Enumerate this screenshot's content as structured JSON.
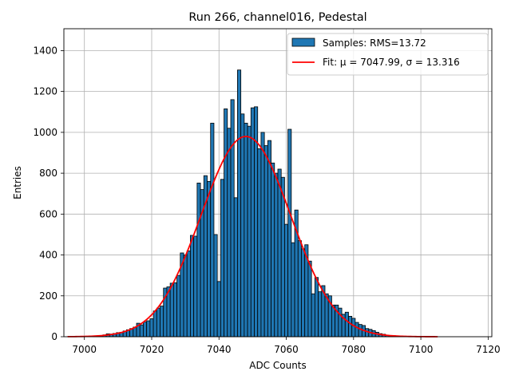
{
  "chart_data": {
    "type": "bar",
    "title": "Run 266, channel016, Pedestal",
    "xlabel": "ADC Counts",
    "ylabel": "Entries",
    "xlim": [
      6993.9,
      7121.1
    ],
    "ylim": [
      0,
      1507
    ],
    "xticks": [
      7000,
      7020,
      7040,
      7060,
      7080,
      7100,
      7120
    ],
    "yticks": [
      0,
      200,
      400,
      600,
      800,
      1000,
      1200,
      1400
    ],
    "grid": true,
    "legend_position": "top-right",
    "bin_width": 1,
    "series": [
      {
        "name": "Samples: RMS=13.72",
        "color": "#1f77b4",
        "edgecolor": "#000000",
        "x": [
          7003,
          7004,
          7005,
          7006,
          7007,
          7008,
          7009,
          7010,
          7011,
          7012,
          7013,
          7014,
          7015,
          7016,
          7017,
          7018,
          7019,
          7020,
          7021,
          7022,
          7023,
          7024,
          7025,
          7026,
          7027,
          7028,
          7029,
          7030,
          7031,
          7032,
          7033,
          7034,
          7035,
          7036,
          7037,
          7038,
          7039,
          7040,
          7041,
          7042,
          7043,
          7044,
          7045,
          7046,
          7047,
          7048,
          7049,
          7050,
          7051,
          7052,
          7053,
          7054,
          7055,
          7056,
          7057,
          7058,
          7059,
          7060,
          7061,
          7062,
          7063,
          7064,
          7065,
          7066,
          7067,
          7068,
          7069,
          7070,
          7071,
          7072,
          7073,
          7074,
          7075,
          7076,
          7077,
          7078,
          7079,
          7080,
          7081,
          7082,
          7083,
          7084,
          7085,
          7086,
          7087,
          7088,
          7089,
          7090,
          7091,
          7092,
          7093,
          7094,
          7095,
          7096
        ],
        "values": [
          2,
          4,
          5,
          9,
          14,
          13,
          16,
          20,
          22,
          28,
          34,
          40,
          47,
          66,
          58,
          72,
          78,
          88,
          126,
          140,
          150,
          238,
          244,
          262,
          264,
          300,
          410,
          400,
          420,
          496,
          492,
          752,
          720,
          788,
          760,
          1045,
          500,
          270,
          770,
          1115,
          1020,
          1160,
          680,
          1305,
          1090,
          1045,
          1030,
          1120,
          1125,
          920,
          1000,
          935,
          960,
          850,
          800,
          820,
          780,
          550,
          1015,
          460,
          620,
          470,
          430,
          450,
          370,
          210,
          290,
          220,
          250,
          210,
          200,
          155,
          155,
          140,
          110,
          120,
          100,
          90,
          70,
          60,
          55,
          40,
          36,
          30,
          22,
          15,
          12,
          8,
          6,
          5,
          4,
          3,
          2,
          1
        ]
      },
      {
        "name": "Fit: μ = 7047.99, σ = 13.316",
        "type": "line",
        "color": "#ff0000",
        "mu": 7047.99,
        "sigma": 13.316,
        "amplitude": 980,
        "x_range": [
          6995,
          7105
        ]
      }
    ]
  }
}
